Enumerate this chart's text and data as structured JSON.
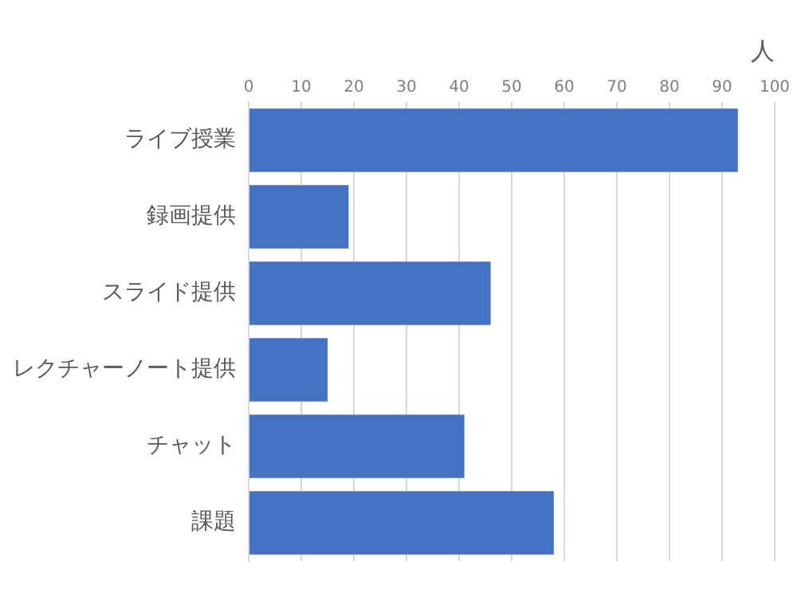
{
  "chart_data": {
    "type": "bar",
    "orientation": "horizontal",
    "xlabel": "人",
    "categories": [
      "ライブ授業",
      "録画提供",
      "スライド提供",
      "レクチャーノート提供",
      "チャット",
      "課題"
    ],
    "values": [
      93,
      19,
      46,
      15,
      41,
      58
    ],
    "color": "#4472c4",
    "xlim": [
      0,
      100
    ],
    "xticks": [
      0,
      10,
      20,
      30,
      40,
      50,
      60,
      70,
      80,
      90,
      100
    ],
    "grid": "x",
    "legend": false
  }
}
